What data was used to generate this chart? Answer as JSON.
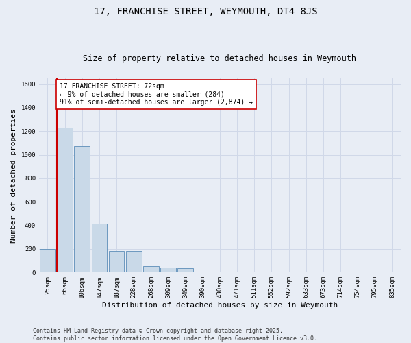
{
  "title": "17, FRANCHISE STREET, WEYMOUTH, DT4 8JS",
  "subtitle": "Size of property relative to detached houses in Weymouth",
  "xlabel": "Distribution of detached houses by size in Weymouth",
  "ylabel": "Number of detached properties",
  "categories": [
    "25sqm",
    "66sqm",
    "106sqm",
    "147sqm",
    "187sqm",
    "228sqm",
    "268sqm",
    "309sqm",
    "349sqm",
    "390sqm",
    "430sqm",
    "471sqm",
    "511sqm",
    "552sqm",
    "592sqm",
    "633sqm",
    "673sqm",
    "714sqm",
    "754sqm",
    "795sqm",
    "835sqm"
  ],
  "values": [
    200,
    1230,
    1075,
    415,
    183,
    180,
    55,
    40,
    35,
    0,
    0,
    0,
    0,
    0,
    0,
    0,
    0,
    0,
    0,
    0,
    0
  ],
  "bar_color": "#c9d9e8",
  "bar_edge_color": "#5b8db8",
  "vline_color": "#cc0000",
  "annotation_text": "17 FRANCHISE STREET: 72sqm\n← 9% of detached houses are smaller (284)\n91% of semi-detached houses are larger (2,874) →",
  "annotation_box_color": "#ffffff",
  "annotation_box_edge_color": "#cc0000",
  "ylim": [
    0,
    1650
  ],
  "yticks": [
    0,
    200,
    400,
    600,
    800,
    1000,
    1200,
    1400,
    1600
  ],
  "grid_color": "#d0d8e8",
  "background_color": "#e8edf5",
  "footer_text": "Contains HM Land Registry data © Crown copyright and database right 2025.\nContains public sector information licensed under the Open Government Licence v3.0.",
  "title_fontsize": 10,
  "subtitle_fontsize": 8.5,
  "xlabel_fontsize": 8,
  "ylabel_fontsize": 8,
  "tick_fontsize": 6.5,
  "annotation_fontsize": 7,
  "footer_fontsize": 6
}
